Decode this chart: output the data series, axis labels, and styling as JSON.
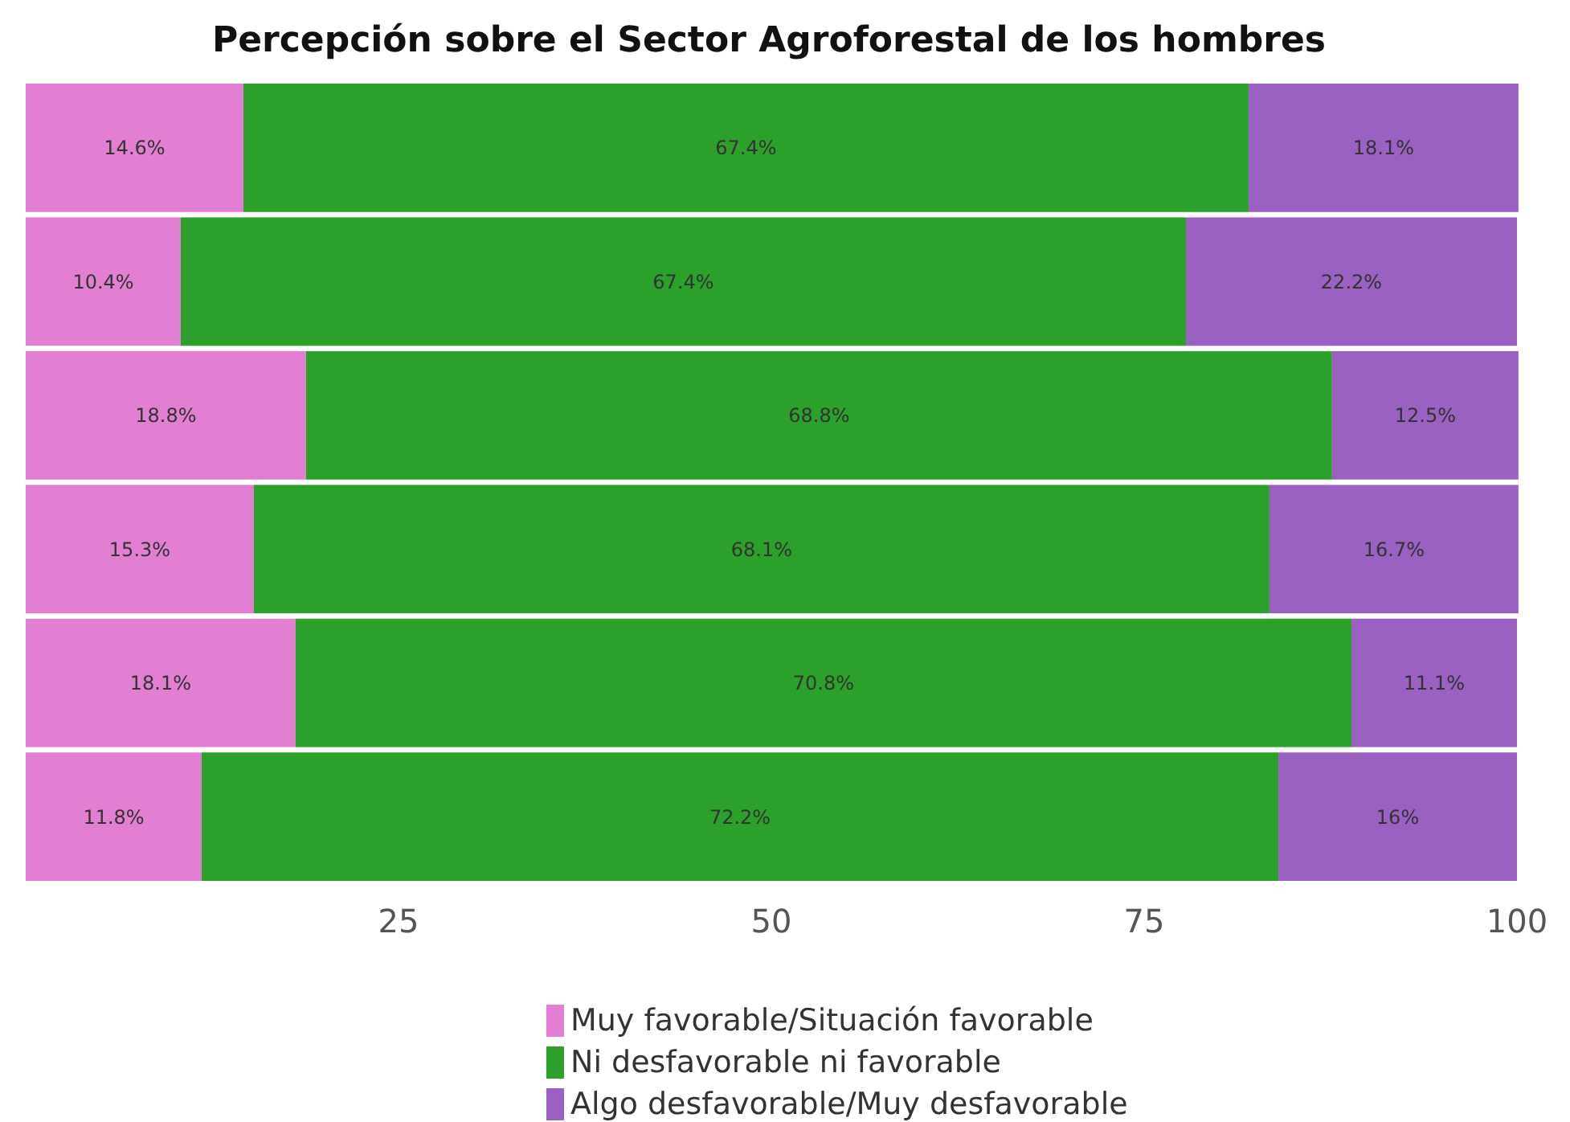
{
  "chart_data": {
    "type": "bar",
    "orientation": "horizontal",
    "stacked": true,
    "title": "Percepción sobre el Sector Agroforestal de los hombres",
    "categories": [
      null,
      null,
      null,
      null,
      null,
      null
    ],
    "series": [
      {
        "name": "Muy favorable/Situación favorable",
        "color": "#e27fd2",
        "values": [
          14.6,
          10.4,
          18.8,
          15.3,
          18.1,
          11.8
        ],
        "value_labels": [
          "14.6%",
          "10.4%",
          "18.8%",
          "15.3%",
          "18.1%",
          "11.8%"
        ]
      },
      {
        "name": "Ni desfavorable ni favorable",
        "color": "#2ba02b",
        "values": [
          67.4,
          67.4,
          68.8,
          68.1,
          70.8,
          72.2
        ],
        "value_labels": [
          "67.4%",
          "67.4%",
          "68.8%",
          "68.1%",
          "70.8%",
          "72.2%"
        ]
      },
      {
        "name": "Algo desfavorable/Muy desfavorable",
        "color": "#9a60c2",
        "values": [
          18.1,
          22.2,
          12.5,
          16.7,
          11.1,
          16
        ],
        "value_labels": [
          "18.1%",
          "22.2%",
          "12.5%",
          "16.7%",
          "11.1%",
          "16%"
        ]
      }
    ],
    "xlim": [
      0,
      100
    ],
    "xticks": [
      25,
      50,
      75,
      100
    ],
    "legend": "bottom"
  }
}
